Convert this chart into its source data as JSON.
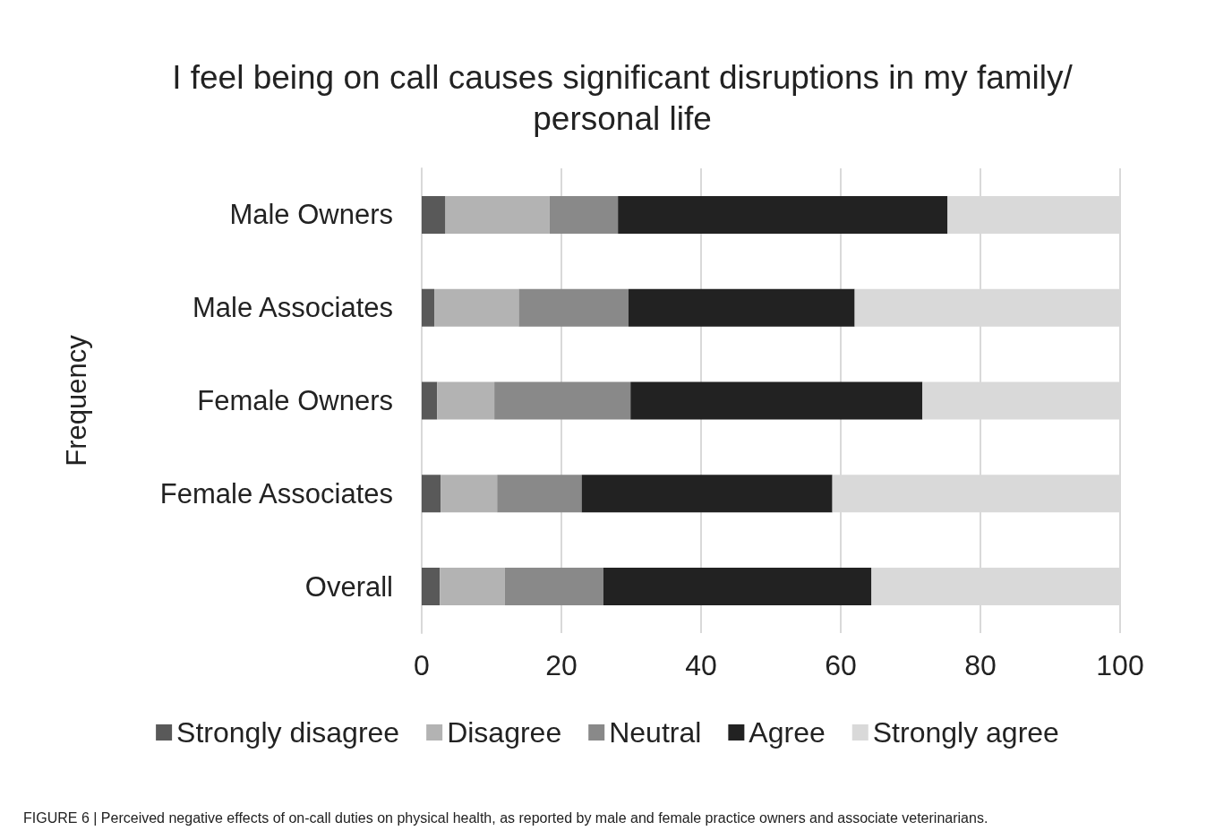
{
  "chart_data": {
    "type": "bar",
    "orientation": "horizontal",
    "stacked": true,
    "title": "I feel being on call causes significant disruptions in my family/personal life",
    "ylabel": "Frequency",
    "categories": [
      "Male Owners",
      "Male Associates",
      "Female Owners",
      "Female Associates",
      "Overall"
    ],
    "series": [
      {
        "name": "Strongly disagree",
        "color": "#595959",
        "values": [
          3.4,
          1.8,
          2.2,
          2.7,
          2.6
        ]
      },
      {
        "name": "Disagree",
        "color": "#b3b3b3",
        "values": [
          14.9,
          12.1,
          8.2,
          8.1,
          9.3
        ]
      },
      {
        "name": "Neutral",
        "color": "#898989",
        "values": [
          9.8,
          15.7,
          19.5,
          12.1,
          14.1
        ]
      },
      {
        "name": "Agree",
        "color": "#222222",
        "values": [
          47.2,
          32.4,
          41.8,
          35.9,
          38.4
        ]
      },
      {
        "name": "Strongly agree",
        "color": "#d9d9d9",
        "values": [
          24.7,
          38.0,
          28.3,
          41.2,
          35.6
        ]
      }
    ],
    "xlim": [
      0,
      100
    ],
    "xticks": [
      0,
      20,
      40,
      60,
      80,
      100
    ],
    "grid": "x",
    "legend": "bottom",
    "annotations": [
      "FIGURE 6 | Perceived negative effects of on-call duties on physical health, as reported by male and female practice owners and associate veterinarians."
    ]
  }
}
